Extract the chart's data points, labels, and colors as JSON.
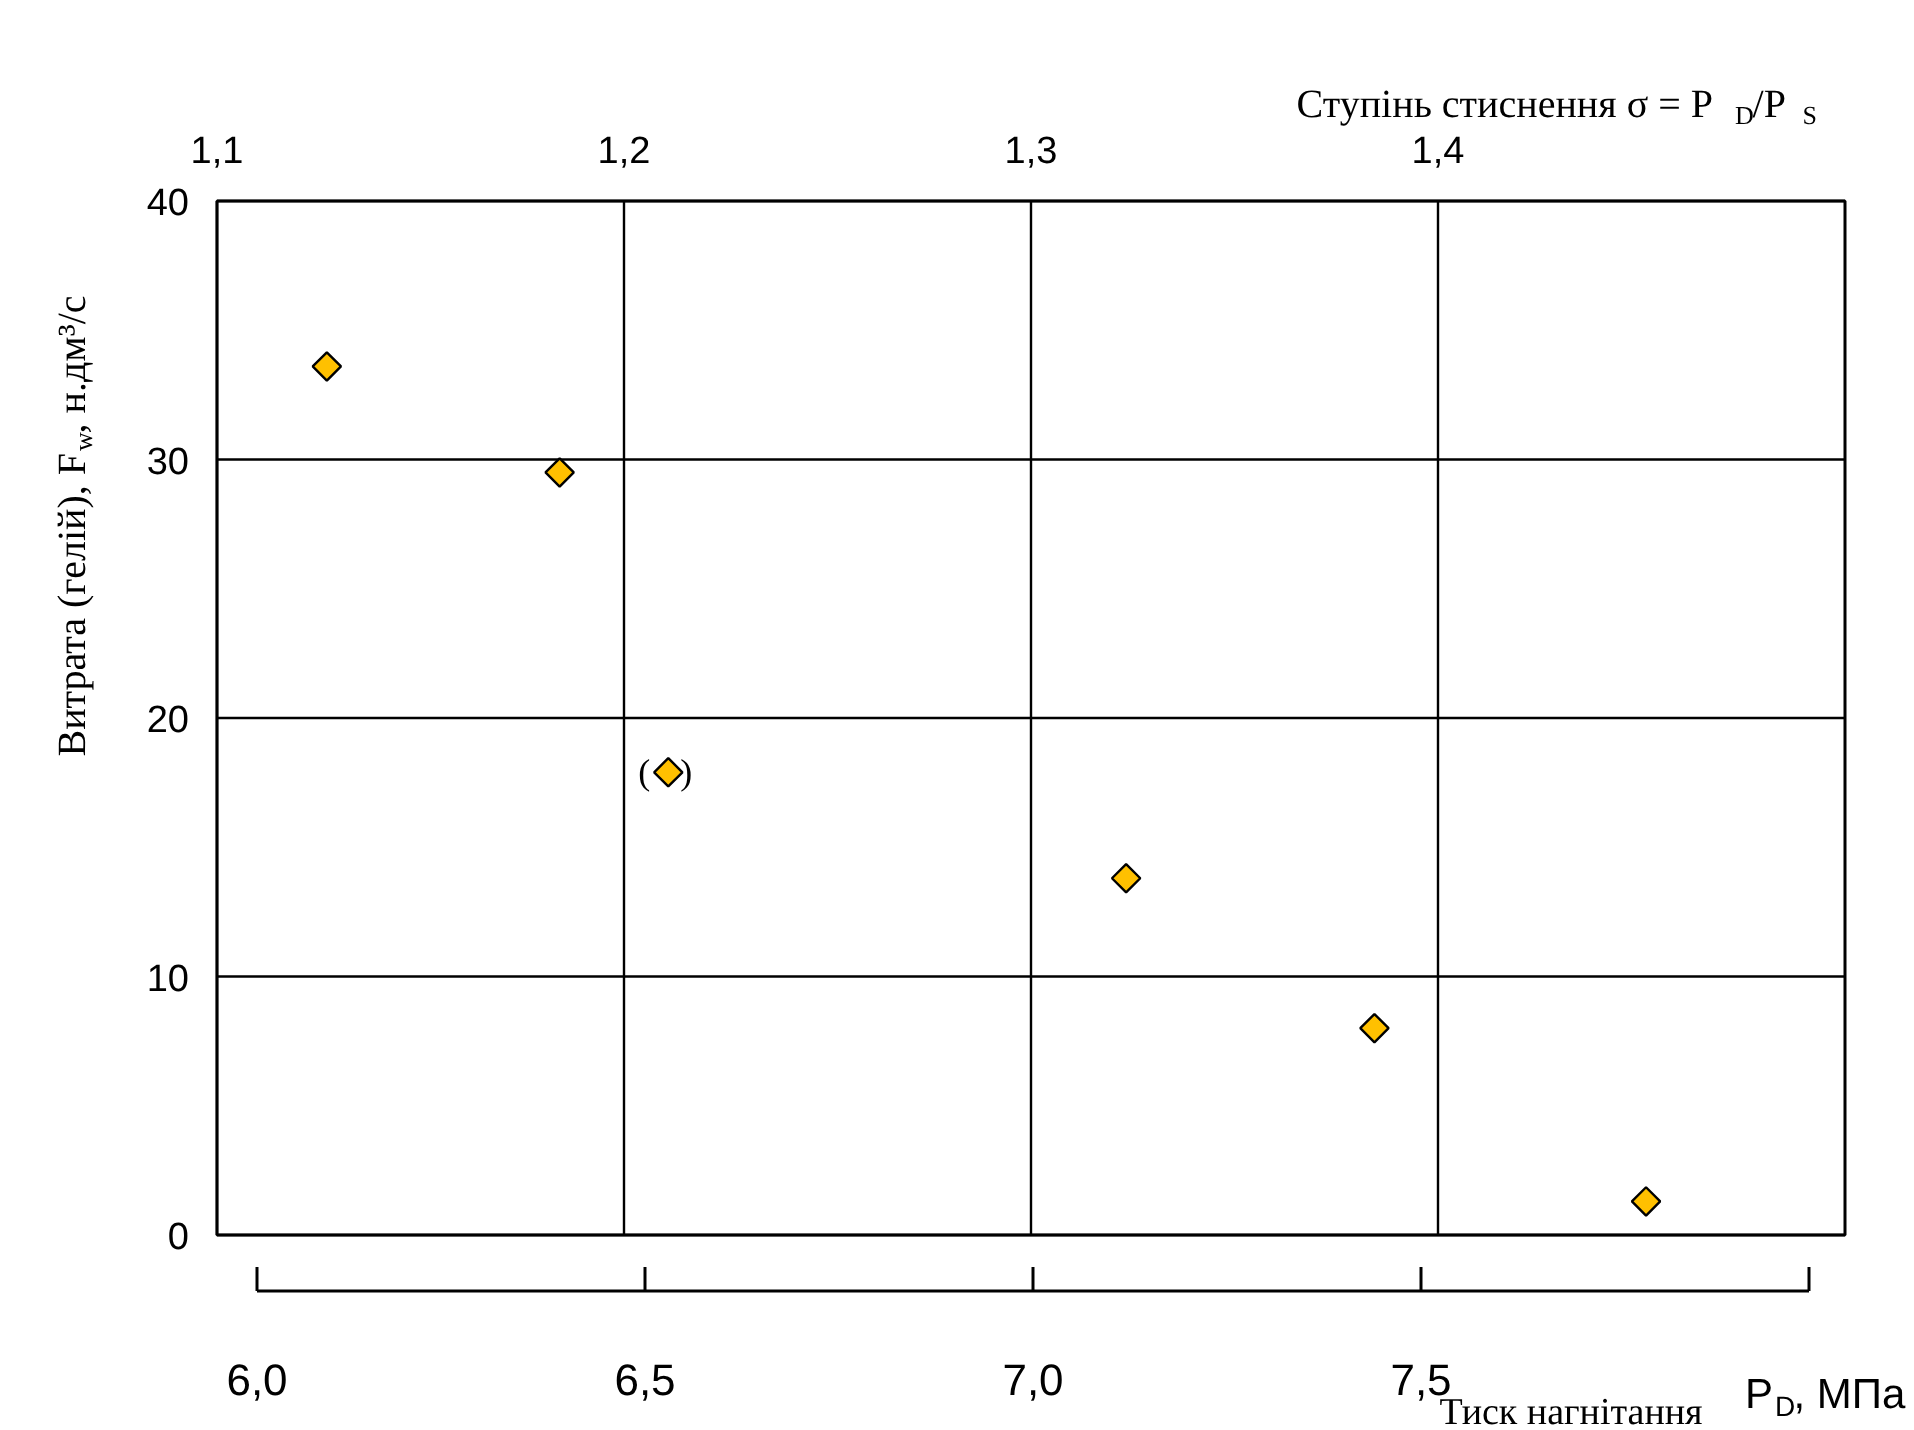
{
  "chart_data": {
    "type": "scatter",
    "x": [
      6.09,
      6.39,
      6.53,
      7.12,
      7.44,
      7.79
    ],
    "values": [
      33.6,
      29.5,
      17.9,
      13.8,
      8.0,
      1.3
    ],
    "color": "#ffc000",
    "marker": "diamond",
    "xlim": [
      6.0,
      8.0
    ],
    "xticks": [
      {
        "value": 6.0,
        "label": "6,0"
      },
      {
        "value": 6.5,
        "label": "6,5"
      },
      {
        "value": 7.0,
        "label": "7,0"
      },
      {
        "value": 7.5,
        "label": "7,5"
      }
    ],
    "x2lim": [
      1.1,
      1.5
    ],
    "x2ticks": [
      {
        "value": 1.1,
        "label": "1,1"
      },
      {
        "value": 1.2,
        "label": "1,2"
      },
      {
        "value": 1.3,
        "label": "1,3"
      },
      {
        "value": 1.4,
        "label": "1,4"
      }
    ],
    "ylim": [
      0,
      40
    ],
    "yticks": [
      0,
      10,
      20,
      30,
      40
    ],
    "grid": true,
    "xlabel": "P$_{D}$, МПа",
    "x2label": "Ступінь стиснення   σ = P$_{D}$/P$_{S}$",
    "ylabel": "Витрата (гелій), F$_{w}$, н.дм³/с",
    "annotations": [
      "Тиск нагнітання",
      {
        "text": "( )",
        "x": 6.53,
        "y": 17.9
      }
    ]
  }
}
